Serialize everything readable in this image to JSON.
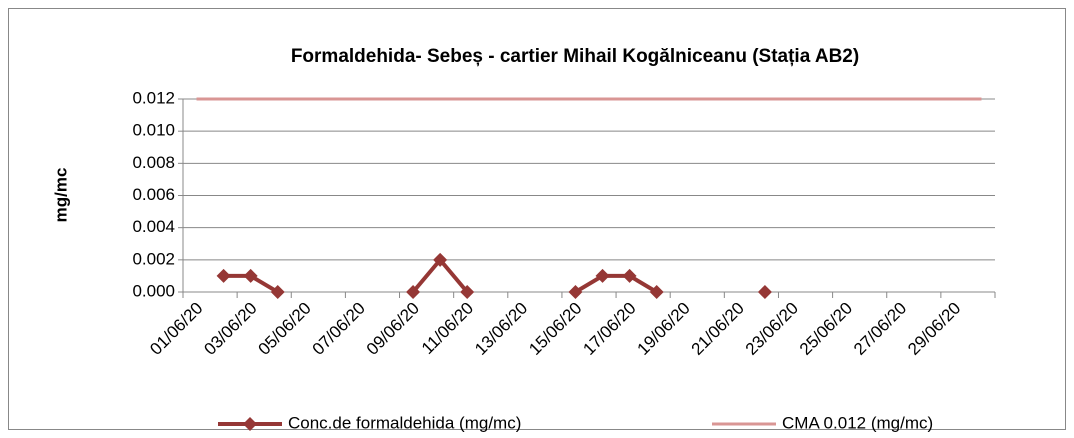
{
  "chart_data": {
    "type": "line",
    "title": "Formaldehida- Sebeș -  cartier Mihail Kogălniceanu (Stația AB2)",
    "y_label": "mg/mc",
    "categories": [
      "01/06/20",
      null,
      "03/06/20",
      null,
      "05/06/20",
      null,
      "07/06/20",
      null,
      "09/06/20",
      null,
      "11/06/20",
      null,
      "13/06/20",
      null,
      "15/06/20",
      null,
      "17/06/20",
      null,
      "19/06/20",
      null,
      "21/06/20",
      null,
      "23/06/20",
      null,
      "25/06/20",
      null,
      "27/06/20",
      null,
      "29/06/20",
      null
    ],
    "series": [
      {
        "name": "Conc.de formaldehida (mg/mc)",
        "color": "#953735",
        "marker": "diamond",
        "values": [
          null,
          0.001,
          0.001,
          0,
          null,
          null,
          null,
          null,
          0,
          0.002,
          0,
          null,
          null,
          null,
          0,
          0.001,
          0.001,
          0,
          null,
          null,
          null,
          0,
          null,
          null,
          null,
          null,
          null,
          null,
          null,
          null
        ]
      },
      {
        "name": "CMA 0.012 (mg/mc)",
        "color": "#d99694",
        "marker": "none",
        "values": [
          0.012,
          0.012,
          0.012,
          0.012,
          0.012,
          0.012,
          0.012,
          0.012,
          0.012,
          0.012,
          0.012,
          0.012,
          0.012,
          0.012,
          0.012,
          0.012,
          0.012,
          0.012,
          0.012,
          0.012,
          0.012,
          0.012,
          0.012,
          0.012,
          0.012,
          0.012,
          0.012,
          0.012,
          0.012,
          0.012
        ]
      }
    ],
    "ylim": [
      0,
      0.012
    ],
    "yticks": [
      {
        "value": 0,
        "label": "0.000"
      },
      {
        "value": 0.002,
        "label": "0.002"
      },
      {
        "value": 0.004,
        "label": "0.004"
      },
      {
        "value": 0.006,
        "label": "0.006"
      },
      {
        "value": 0.008,
        "label": "0.008"
      },
      {
        "value": 0.01,
        "label": "0.010"
      },
      {
        "value": 0.012,
        "label": "0.012"
      }
    ],
    "grid": true,
    "legend": "bottom"
  }
}
